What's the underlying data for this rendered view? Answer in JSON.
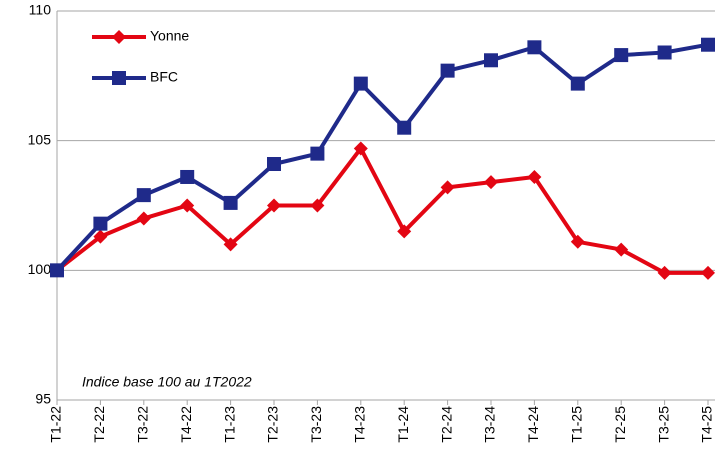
{
  "chart_data": {
    "type": "line",
    "categories": [
      "T1-22",
      "T2-22",
      "T3-22",
      "T4-22",
      "T1-23",
      "T2-23",
      "T3-23",
      "T4-23",
      "T1-24",
      "T2-24",
      "T3-24",
      "T4-24",
      "T1-25",
      "T2-25",
      "T3-25",
      "T4-25"
    ],
    "series": [
      {
        "name": "Yonne",
        "color": "#e30613",
        "marker": "diamond",
        "values": [
          100,
          101.3,
          102.0,
          102.5,
          101.0,
          102.5,
          102.5,
          104.7,
          101.5,
          103.2,
          103.4,
          103.6,
          101.1,
          100.8,
          99.9,
          99.9
        ]
      },
      {
        "name": "BFC",
        "color": "#1f2a8a",
        "marker": "square",
        "values": [
          100,
          101.8,
          102.9,
          103.6,
          102.6,
          104.1,
          104.5,
          107.2,
          105.5,
          107.7,
          108.1,
          108.6,
          107.2,
          108.3,
          108.4,
          108.7
        ]
      }
    ],
    "ylim": [
      95,
      110
    ],
    "yticks": [
      95,
      100,
      105,
      110
    ],
    "grid": true,
    "legend": "top-left",
    "annotation": "Indice base 100 au 1T2022"
  }
}
